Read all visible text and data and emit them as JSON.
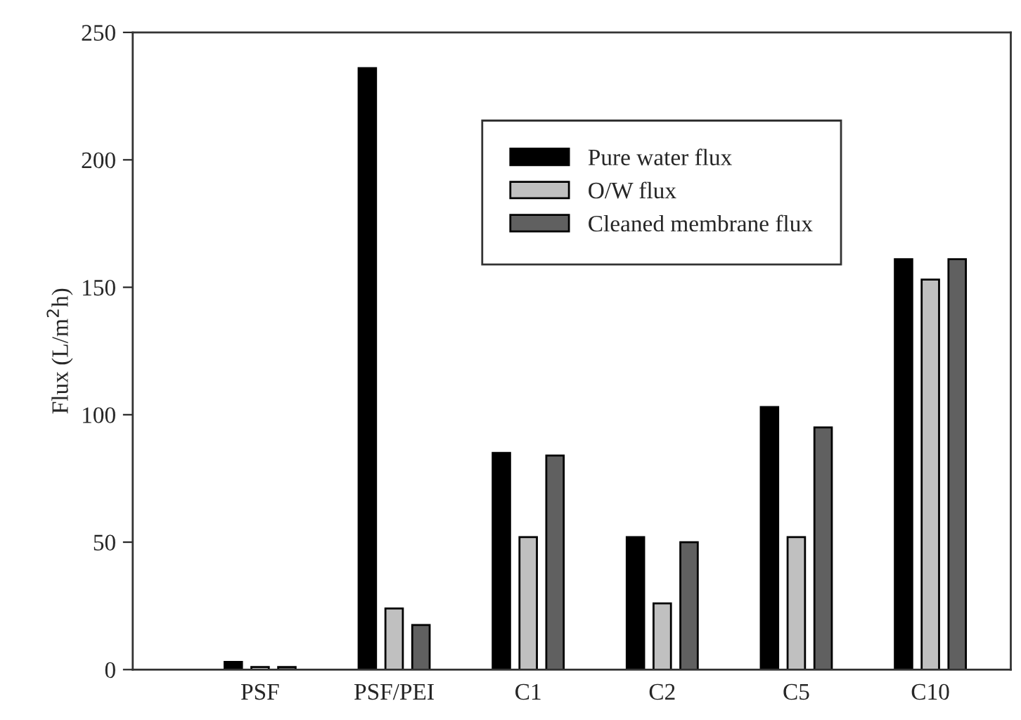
{
  "chart_data": {
    "type": "bar",
    "ylabel": "Flux (L/m$^{2}$h)",
    "categories": [
      "PSF",
      "PSF/PEI",
      "C1",
      "C2",
      "C5",
      "C10"
    ],
    "series": [
      {
        "name": "Pure water flux",
        "color": "#000000",
        "values": [
          3,
          236,
          85,
          52,
          103,
          161
        ]
      },
      {
        "name": "O/W flux",
        "color": "#c0c0c0",
        "values": [
          1,
          24,
          52,
          26,
          52,
          153
        ]
      },
      {
        "name": "Cleaned membrane flux",
        "color": "#606060",
        "values": [
          1,
          17.5,
          84,
          50,
          95,
          161
        ]
      }
    ],
    "ylim": [
      0,
      250
    ],
    "yticks": [
      0,
      50,
      100,
      150,
      200,
      250
    ],
    "grid": false,
    "legend": "top right"
  }
}
